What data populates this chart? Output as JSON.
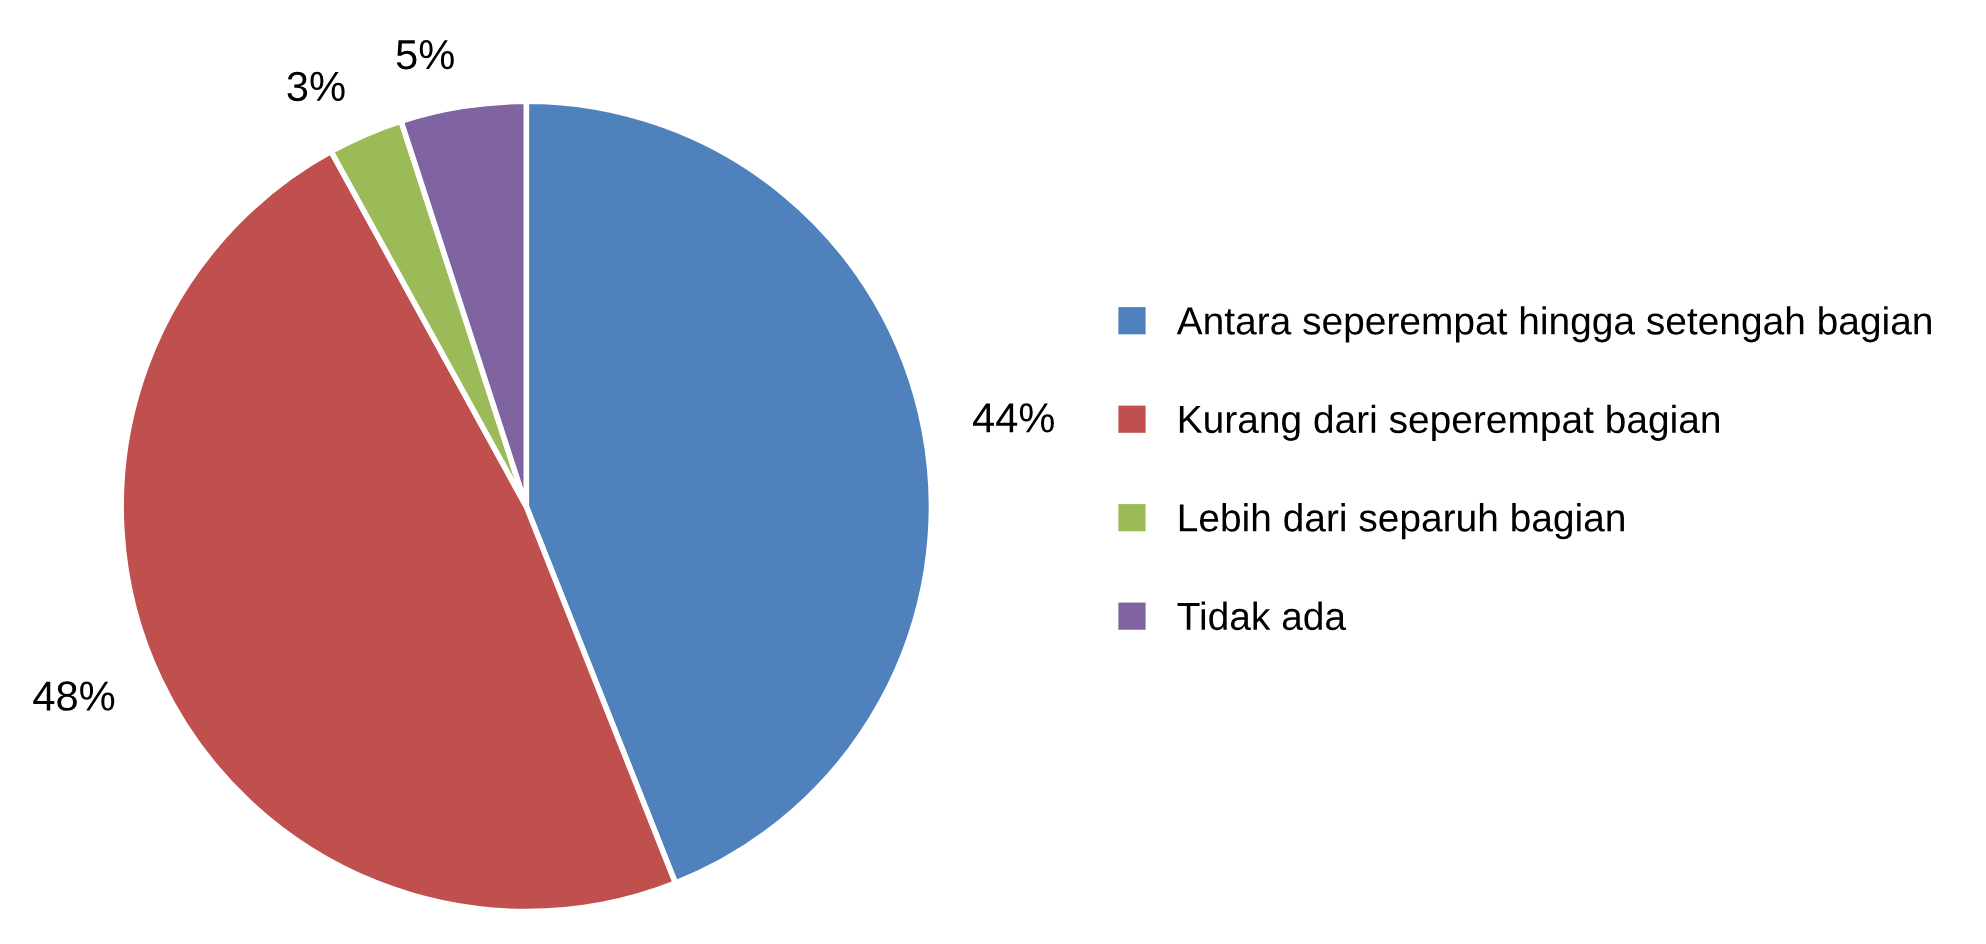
{
  "chart_data": {
    "type": "pie",
    "categories": [
      "Antara seperempat hingga setengah bagian",
      "Kurang dari seperempat bagian",
      "Lebih dari separuh bagian",
      "Tidak ada"
    ],
    "values": [
      44,
      48,
      3,
      5
    ],
    "colors": [
      "#4f81bd",
      "#c0504d",
      "#9bbb59",
      "#8064a2"
    ],
    "value_labels": [
      "44%",
      "48%",
      "3%",
      "5%"
    ],
    "legend": "right"
  }
}
